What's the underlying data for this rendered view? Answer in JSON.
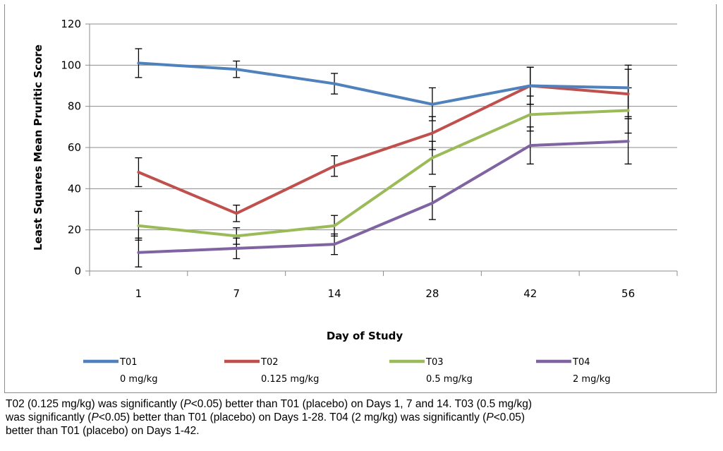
{
  "chart_data": {
    "type": "line",
    "categories": [
      "1",
      "7",
      "14",
      "28",
      "42",
      "56"
    ],
    "ylabel": "Least Squares  Mean Pruritic Score",
    "xlabel": "Day of Study",
    "ylim": [
      0,
      120
    ],
    "yticks": [
      0,
      20,
      40,
      60,
      80,
      100,
      120
    ],
    "grid": true,
    "legend_position": "bottom",
    "series": [
      {
        "name": "T01",
        "sublabel": "0 mg/kg",
        "color": "#4f81bd",
        "values": [
          101,
          98,
          91,
          81,
          90,
          89
        ],
        "err_low": [
          94,
          94,
          86,
          73,
          81,
          75
        ],
        "err_high": [
          108,
          102,
          96,
          89,
          99,
          100
        ]
      },
      {
        "name": "T02",
        "sublabel": "0.125 mg/kg",
        "color": "#c0504d",
        "values": [
          48,
          28,
          51,
          67,
          90,
          86
        ],
        "err_low": [
          41,
          24,
          46,
          59,
          81,
          74
        ],
        "err_high": [
          55,
          32,
          56,
          75,
          99,
          98
        ]
      },
      {
        "name": "T03",
        "sublabel": "0.5 mg/kg",
        "color": "#9bbb59",
        "values": [
          22,
          17,
          22,
          55,
          76,
          78
        ],
        "err_low": [
          15,
          13,
          17,
          47,
          68,
          67
        ],
        "err_high": [
          29,
          21,
          27,
          63,
          85,
          89
        ]
      },
      {
        "name": "T04",
        "sublabel": "2 mg/kg",
        "color": "#8064a2",
        "values": [
          9,
          11,
          13,
          33,
          61,
          63
        ],
        "err_low": [
          2,
          6,
          8,
          25,
          52,
          52
        ],
        "err_high": [
          16,
          16,
          18,
          41,
          70,
          74
        ]
      }
    ]
  },
  "caption": {
    "line1_a": "T02 (0.125 mg/kg)  was significantly (",
    "p1": "P",
    "line1_b": "<0.05) better than T01 (placebo) on Days 1, 7 and 14.  T03 (0.5 mg/kg)",
    "line2_a": "was significantly (",
    "p2": "P",
    "line2_b": "<0.05) better than T01 (placebo) on Days 1-28.  T04 (2 mg/kg) was significantly (",
    "p3": "P",
    "line2_c": "<0.05)",
    "line3": "better than T01 (placebo) on Days 1-42."
  }
}
